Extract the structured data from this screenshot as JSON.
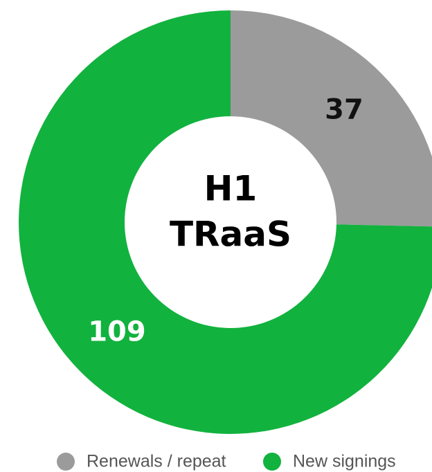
{
  "chart_data": {
    "type": "donut",
    "center_text": [
      "H1",
      "TRaaS"
    ],
    "categories": [
      "Renewals / repeat",
      "New signings"
    ],
    "values": [
      37,
      109
    ],
    "colors": [
      "#9b9b9b",
      "#12b23e"
    ],
    "label_colors": [
      "#111111",
      "#ffffff"
    ],
    "legend": "bottom"
  }
}
